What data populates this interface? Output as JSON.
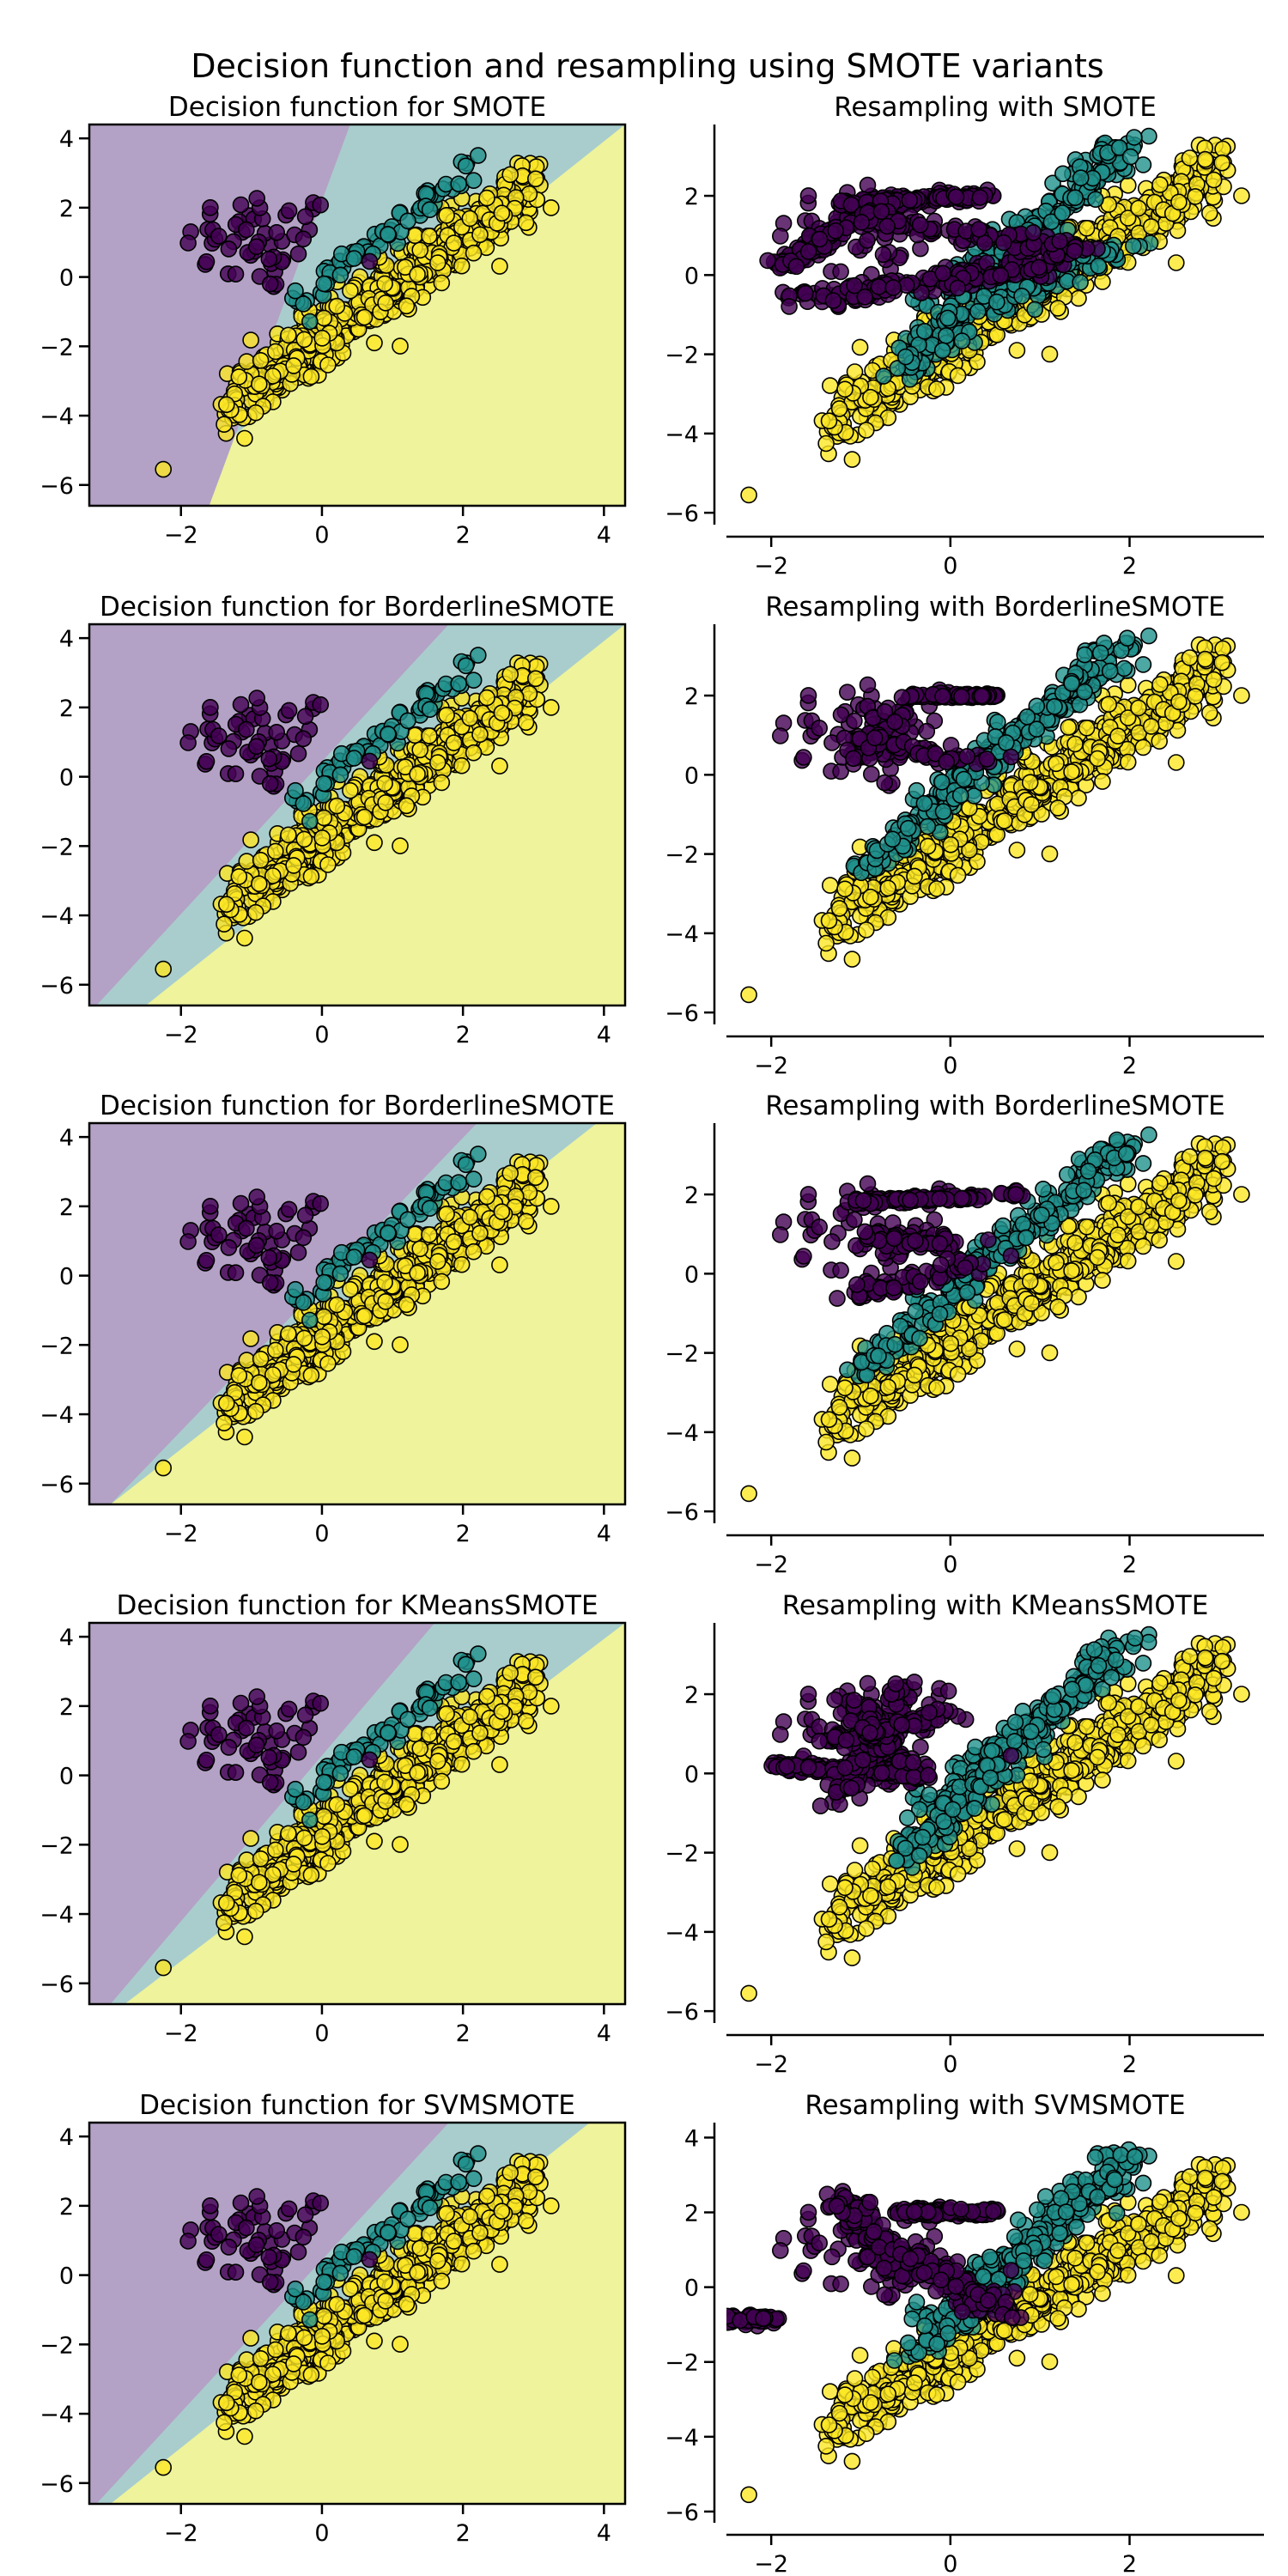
{
  "figure": {
    "title": "Decision function and resampling using SMOTE variants"
  },
  "colors": {
    "class_0": "#440154",
    "class_1": "#21918c",
    "class_2": "#fde725",
    "region_0": "#b3a2c5",
    "region_1": "#a9cdcd",
    "region_2": "#eef39c",
    "marker_edge": "#000000"
  },
  "chart_data": [
    {
      "type": "scatter",
      "kind": "decision_function",
      "method": "SMOTE",
      "title": "Decision function for SMOTE",
      "xlim": [
        -3.3,
        4.3
      ],
      "ylim": [
        -6.6,
        4.4
      ],
      "xticks": [
        -2,
        0,
        2,
        4
      ],
      "yticks": [
        -6,
        -4,
        -2,
        0,
        2,
        4
      ],
      "boundary_purple": [
        [
          -1.6,
          -6.6
        ],
        [
          0.4,
          4.4
        ]
      ],
      "boundary_yellow": [
        [
          -2.5,
          -6.6
        ],
        [
          4.3,
          4.4
        ]
      ],
      "grid": false
    },
    {
      "type": "scatter",
      "kind": "resampling",
      "method": "SMOTE",
      "title": "Resampling with SMOTE",
      "xlim": [
        -2.5,
        3.5
      ],
      "ylim": [
        -6.3,
        3.8
      ],
      "xticks": [
        -2,
        0,
        2
      ],
      "yticks": [
        -6,
        -4,
        -2,
        0,
        2
      ],
      "grid": false
    },
    {
      "type": "scatter",
      "kind": "decision_function",
      "method": "BorderlineSMOTE",
      "title": "Decision function for BorderlineSMOTE",
      "xlim": [
        -3.3,
        4.3
      ],
      "ylim": [
        -6.6,
        4.4
      ],
      "xticks": [
        -2,
        0,
        2,
        4
      ],
      "yticks": [
        -6,
        -4,
        -2,
        0,
        2,
        4
      ],
      "boundary_purple": [
        [
          -3.2,
          -6.6
        ],
        [
          1.8,
          4.4
        ]
      ],
      "boundary_yellow": [
        [
          -2.5,
          -6.6
        ],
        [
          4.3,
          4.4
        ]
      ],
      "grid": false
    },
    {
      "type": "scatter",
      "kind": "resampling",
      "method": "BorderlineSMOTE",
      "title": "Resampling with BorderlineSMOTE",
      "xlim": [
        -2.5,
        3.5
      ],
      "ylim": [
        -6.3,
        3.8
      ],
      "xticks": [
        -2,
        0,
        2
      ],
      "yticks": [
        -6,
        -4,
        -2,
        0,
        2
      ],
      "grid": false
    },
    {
      "type": "scatter",
      "kind": "decision_function",
      "method": "BorderlineSMOTE",
      "title": "Decision function for BorderlineSMOTE",
      "xlim": [
        -3.3,
        4.3
      ],
      "ylim": [
        -6.6,
        4.4
      ],
      "xticks": [
        -2,
        0,
        2,
        4
      ],
      "yticks": [
        -6,
        -4,
        -2,
        0,
        2,
        4
      ],
      "boundary_purple": [
        [
          -3.0,
          -6.6
        ],
        [
          2.2,
          4.4
        ]
      ],
      "boundary_yellow": [
        [
          -3.0,
          -6.6
        ],
        [
          3.9,
          4.4
        ]
      ],
      "grid": false
    },
    {
      "type": "scatter",
      "kind": "resampling",
      "method": "BorderlineSMOTE",
      "title": "Resampling with BorderlineSMOTE",
      "xlim": [
        -2.5,
        3.5
      ],
      "ylim": [
        -6.3,
        3.8
      ],
      "xticks": [
        -2,
        0,
        2
      ],
      "yticks": [
        -6,
        -4,
        -2,
        0,
        2
      ],
      "grid": false
    },
    {
      "type": "scatter",
      "kind": "decision_function",
      "method": "KMeansSMOTE",
      "title": "Decision function for KMeansSMOTE",
      "xlim": [
        -3.3,
        4.3
      ],
      "ylim": [
        -6.6,
        4.4
      ],
      "xticks": [
        -2,
        0,
        2,
        4
      ],
      "yticks": [
        -6,
        -4,
        -2,
        0,
        2,
        4
      ],
      "boundary_purple": [
        [
          -3.0,
          -6.6
        ],
        [
          1.6,
          4.4
        ]
      ],
      "boundary_yellow": [
        [
          -2.8,
          -6.6
        ],
        [
          4.3,
          4.4
        ]
      ],
      "grid": false
    },
    {
      "type": "scatter",
      "kind": "resampling",
      "method": "KMeansSMOTE",
      "title": "Resampling with KMeansSMOTE",
      "xlim": [
        -2.5,
        3.5
      ],
      "ylim": [
        -6.3,
        3.8
      ],
      "xticks": [
        -2,
        0,
        2
      ],
      "yticks": [
        -6,
        -4,
        -2,
        0,
        2
      ],
      "grid": false
    },
    {
      "type": "scatter",
      "kind": "decision_function",
      "method": "SVMSMOTE",
      "title": "Decision function for SVMSMOTE",
      "xlim": [
        -3.3,
        4.3
      ],
      "ylim": [
        -6.6,
        4.4
      ],
      "xticks": [
        -2,
        0,
        2,
        4
      ],
      "yticks": [
        -6,
        -4,
        -2,
        0,
        2,
        4
      ],
      "boundary_purple": [
        [
          -3.2,
          -6.6
        ],
        [
          1.8,
          4.4
        ]
      ],
      "boundary_yellow": [
        [
          -3.0,
          -6.6
        ],
        [
          3.8,
          4.4
        ]
      ],
      "grid": false
    },
    {
      "type": "scatter",
      "kind": "resampling",
      "method": "SVMSMOTE",
      "title": "Resampling with SVMSMOTE",
      "xlim": [
        -2.5,
        3.5
      ],
      "ylim": [
        -6.3,
        4.4
      ],
      "xticks": [
        -2,
        0,
        2
      ],
      "yticks": [
        -6,
        -4,
        -2,
        0,
        2,
        4
      ],
      "grid": false
    }
  ]
}
